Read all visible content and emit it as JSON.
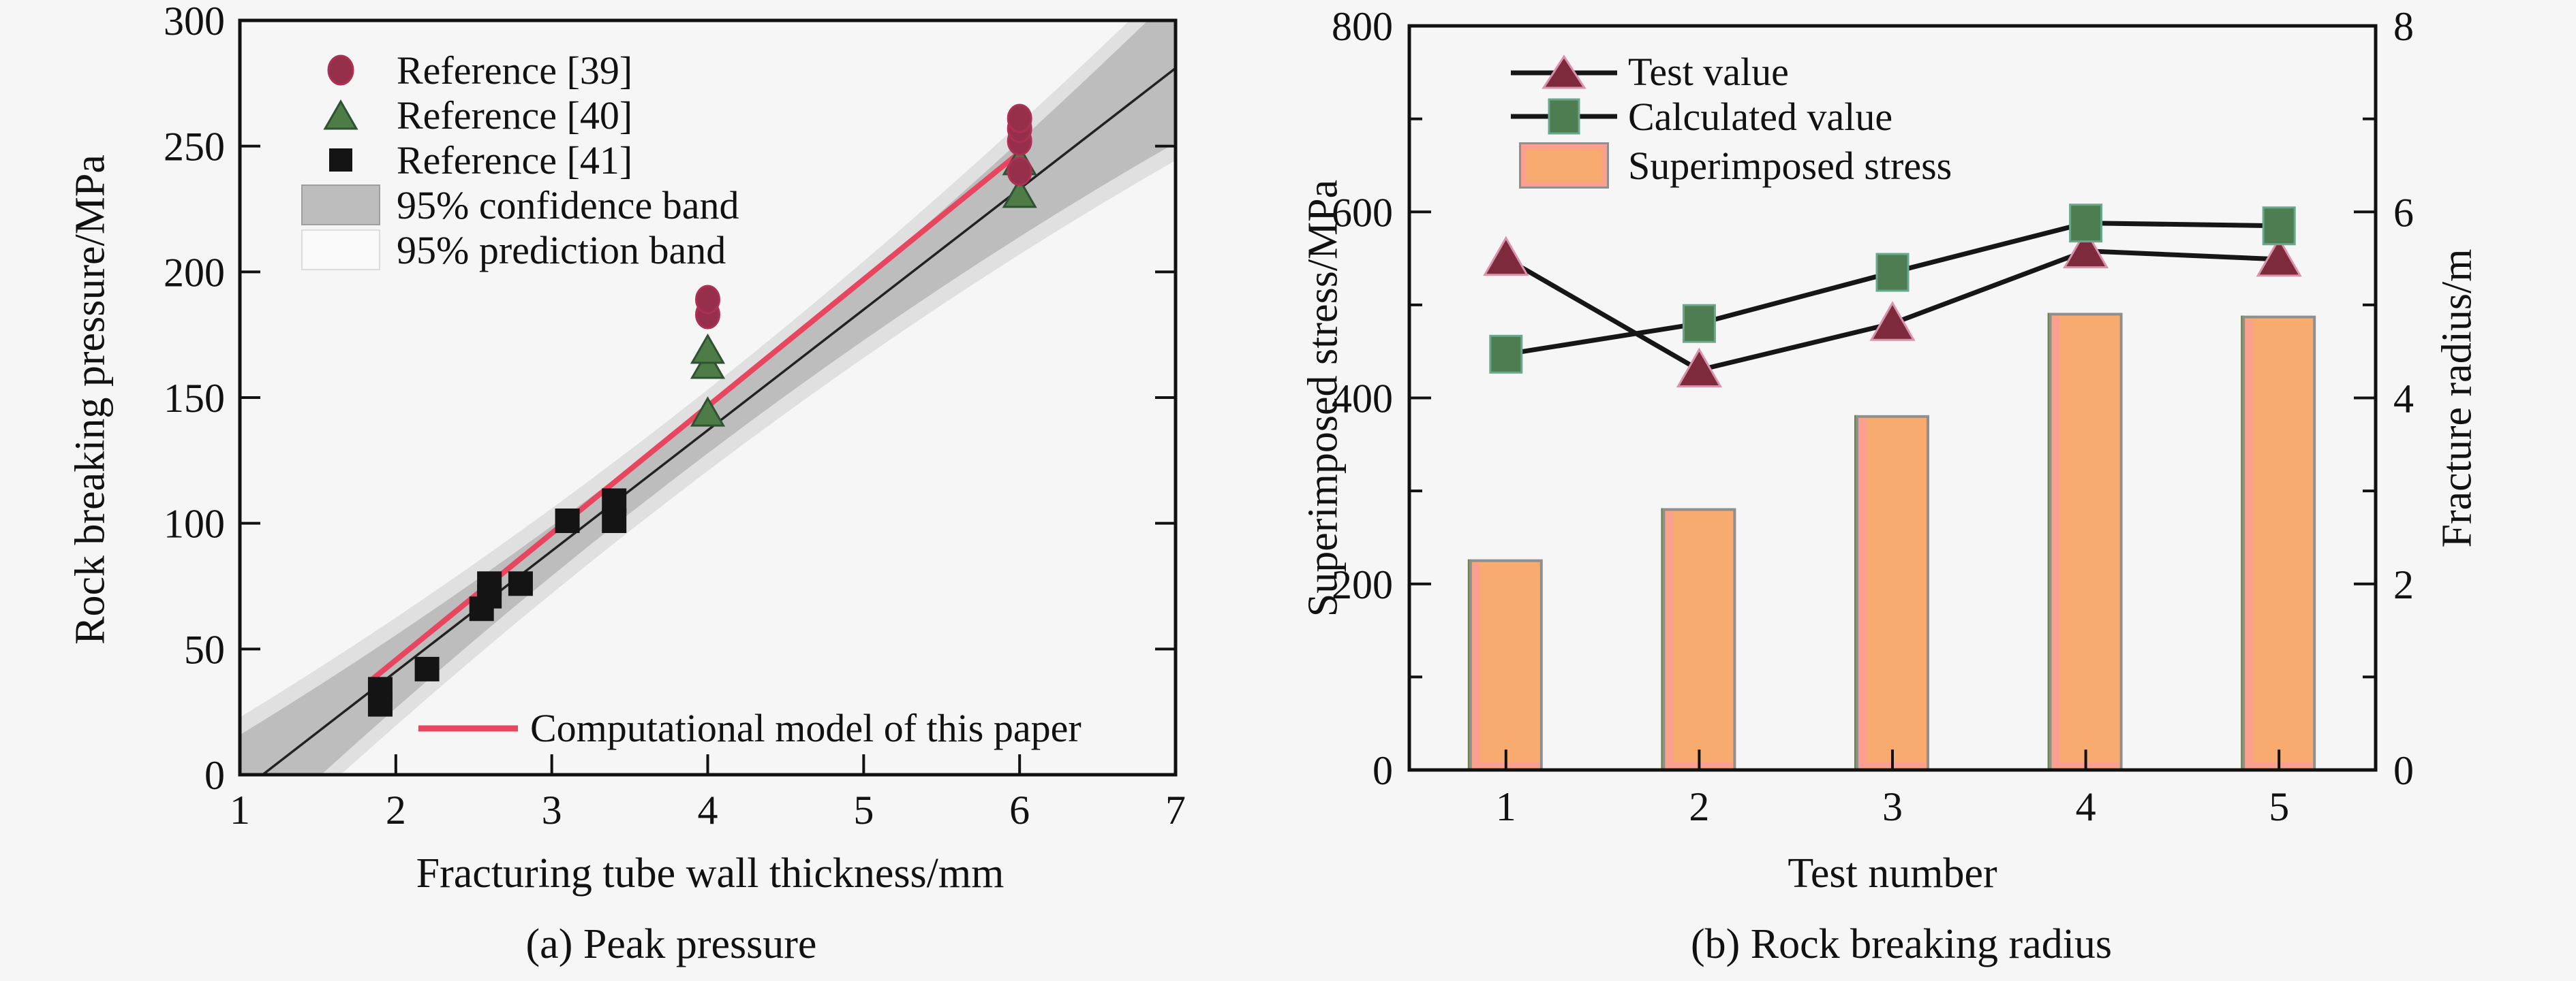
{
  "figure": {
    "background": "#f6f6f6",
    "caption_a": "(a) Peak pressure",
    "caption_b": "(b) Rock breaking radius"
  },
  "chart_data": [
    {
      "type": "scatter",
      "title": "(a) Peak pressure",
      "xlabel": "Fracturing tube wall thickness/mm",
      "ylabel": "Rock breaking pressure/MPa",
      "xlim": [
        1,
        7
      ],
      "ylim": [
        0,
        300
      ],
      "xticks": [
        1,
        2,
        3,
        4,
        5,
        6,
        7
      ],
      "yticks": [
        0,
        50,
        100,
        150,
        200,
        250,
        300
      ],
      "grid": "off",
      "legend_position": "upper-left-inside",
      "series": [
        {
          "name": "Reference [39]",
          "marker": "circle",
          "color": "#96304a",
          "edge": "#ad3054",
          "points": [
            [
              4,
              183
            ],
            [
              4,
              189
            ],
            [
              6,
              240
            ],
            [
              6,
              252
            ],
            [
              6,
              257
            ],
            [
              6,
              261
            ]
          ]
        },
        {
          "name": "Reference [40]",
          "marker": "triangle",
          "color": "#4d7c46",
          "edge": "#2f5233",
          "points": [
            [
              4,
              144
            ],
            [
              4,
              163
            ],
            [
              4,
              169
            ],
            [
              6,
              231
            ],
            [
              6,
              244
            ]
          ]
        },
        {
          "name": "Reference [41]",
          "marker": "square",
          "color": "#141414",
          "edge": "#141414",
          "points": [
            [
              1.9,
              28
            ],
            [
              1.9,
              34
            ],
            [
              2.2,
              42
            ],
            [
              2.55,
              66
            ],
            [
              2.6,
              71
            ],
            [
              2.6,
              76
            ],
            [
              2.8,
              76
            ],
            [
              3.1,
              101
            ],
            [
              3.4,
              101
            ],
            [
              3.4,
              109
            ]
          ]
        }
      ],
      "fit_line": {
        "slope": 48,
        "intercept": -55,
        "color": "#222222"
      },
      "model_line": {
        "label": "Computational model of this paper",
        "x1": 1.85,
        "y1": 38,
        "x2": 6.05,
        "y2": 250,
        "color": "#e8455f"
      },
      "bands": {
        "confidence": {
          "label": "95% confidence band",
          "color": "#bdbdbd",
          "base_halfwidth": 9,
          "curvature": 1.9,
          "center": 3.7
        },
        "prediction": {
          "label": "95% prediction band",
          "color": "#e0e0e0",
          "swatch_fill": "#f9f9f9",
          "extra_halfwidth": 7
        }
      }
    },
    {
      "type": "bar+line",
      "title": "(b) Rock breaking radius",
      "xlabel": "Test number",
      "ylabel_left": "Superimposed stress/MPa",
      "ylabel_right": "Fracture radius/m",
      "categories": [
        1,
        2,
        3,
        4,
        5
      ],
      "ylim_left": [
        0,
        800
      ],
      "ylim_right": [
        0,
        8
      ],
      "yticks_left": [
        0,
        200,
        400,
        600,
        800
      ],
      "yticks_right": [
        0,
        2,
        4,
        6,
        8
      ],
      "grid": "off",
      "legend_position": "upper-left-inside",
      "line_color": "#161616",
      "bars": {
        "name": "Superimposed stress",
        "values_mpa": [
          225,
          280,
          380,
          490,
          487
        ],
        "color": "#f7ab6f",
        "edge": "#8f8f8f",
        "inner": "#fba090",
        "accent": "#66833f"
      },
      "series": [
        {
          "name": "Test value",
          "marker": "triangle",
          "color": "#7d2a3c",
          "edge": "#d993ab",
          "values_mpa": [
            550,
            430,
            480,
            558,
            549
          ],
          "values_radius": [
            5.5,
            4.3,
            4.8,
            5.58,
            5.49
          ]
        },
        {
          "name": "Calculated value",
          "marker": "square",
          "color": "#4e7d52",
          "edge": "#6aa88e",
          "values_mpa": [
            447,
            480,
            535,
            588,
            585
          ],
          "values_radius": [
            4.47,
            4.8,
            5.35,
            5.88,
            5.85
          ]
        }
      ]
    }
  ]
}
